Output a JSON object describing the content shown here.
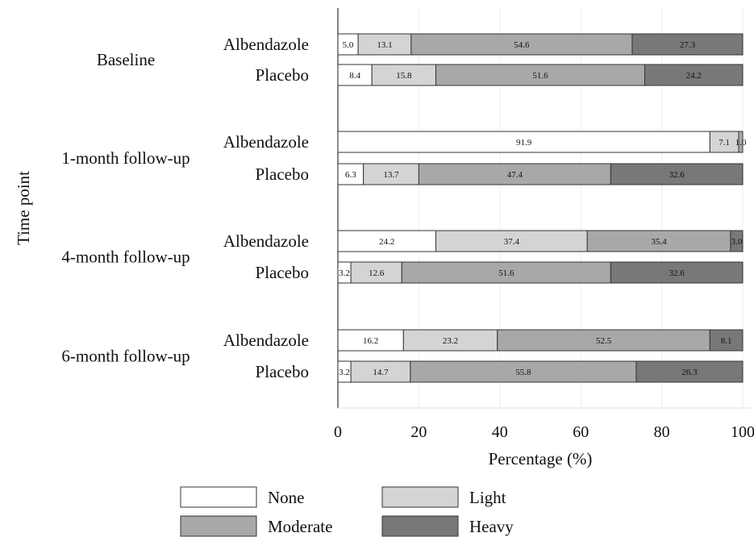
{
  "chart_data": {
    "type": "bar",
    "stacked": true,
    "orientation": "horizontal",
    "ylabel": "Time point",
    "xlabel": "Percentage (%)",
    "xlim": [
      0,
      100
    ],
    "xticks": [
      "0",
      "20",
      "40",
      "60",
      "80",
      "100"
    ],
    "grid": "vertical",
    "legend_position": "bottom",
    "categories": [
      "None",
      "Light",
      "Moderate",
      "Heavy"
    ],
    "colors": [
      "#ffffff",
      "#d4d4d4",
      "#a8a8a8",
      "#787878"
    ],
    "groups": [
      {
        "label": "Baseline",
        "rows": [
          {
            "label": "Albendazole",
            "values": [
              5.0,
              13.1,
              54.6,
              27.3
            ],
            "labels": [
              "5.0",
              "13.1",
              "54.6",
              "27.3"
            ]
          },
          {
            "label": "Placebo",
            "values": [
              8.4,
              15.8,
              51.6,
              24.2
            ],
            "labels": [
              "8.4",
              "15.8",
              "51.6",
              "24.2"
            ]
          }
        ]
      },
      {
        "label": "1-month follow-up",
        "rows": [
          {
            "label": "Albendazole",
            "values": [
              91.9,
              7.1,
              1.0,
              0.0
            ],
            "labels": [
              "91.9",
              "7.1",
              "1.0",
              ""
            ]
          },
          {
            "label": "Placebo",
            "values": [
              6.3,
              13.7,
              47.4,
              32.6
            ],
            "labels": [
              "6.3",
              "13.7",
              "47.4",
              "32.6"
            ]
          }
        ]
      },
      {
        "label": "4-month follow-up",
        "rows": [
          {
            "label": "Albendazole",
            "values": [
              24.2,
              37.4,
              35.4,
              3.0
            ],
            "labels": [
              "24.2",
              "37.4",
              "35.4",
              "3.0"
            ]
          },
          {
            "label": "Placebo",
            "values": [
              3.2,
              12.6,
              51.6,
              32.6
            ],
            "labels": [
              "3.2",
              "12.6",
              "51.6",
              "32.6"
            ]
          }
        ]
      },
      {
        "label": "6-month follow-up",
        "rows": [
          {
            "label": "Albendazole",
            "values": [
              16.2,
              23.2,
              52.5,
              8.1
            ],
            "labels": [
              "16.2",
              "23.2",
              "52.5",
              "8.1"
            ]
          },
          {
            "label": "Placebo",
            "values": [
              3.2,
              14.7,
              55.8,
              26.3
            ],
            "labels": [
              "3.2",
              "14.7",
              "55.8",
              "26.3"
            ]
          }
        ]
      }
    ]
  }
}
